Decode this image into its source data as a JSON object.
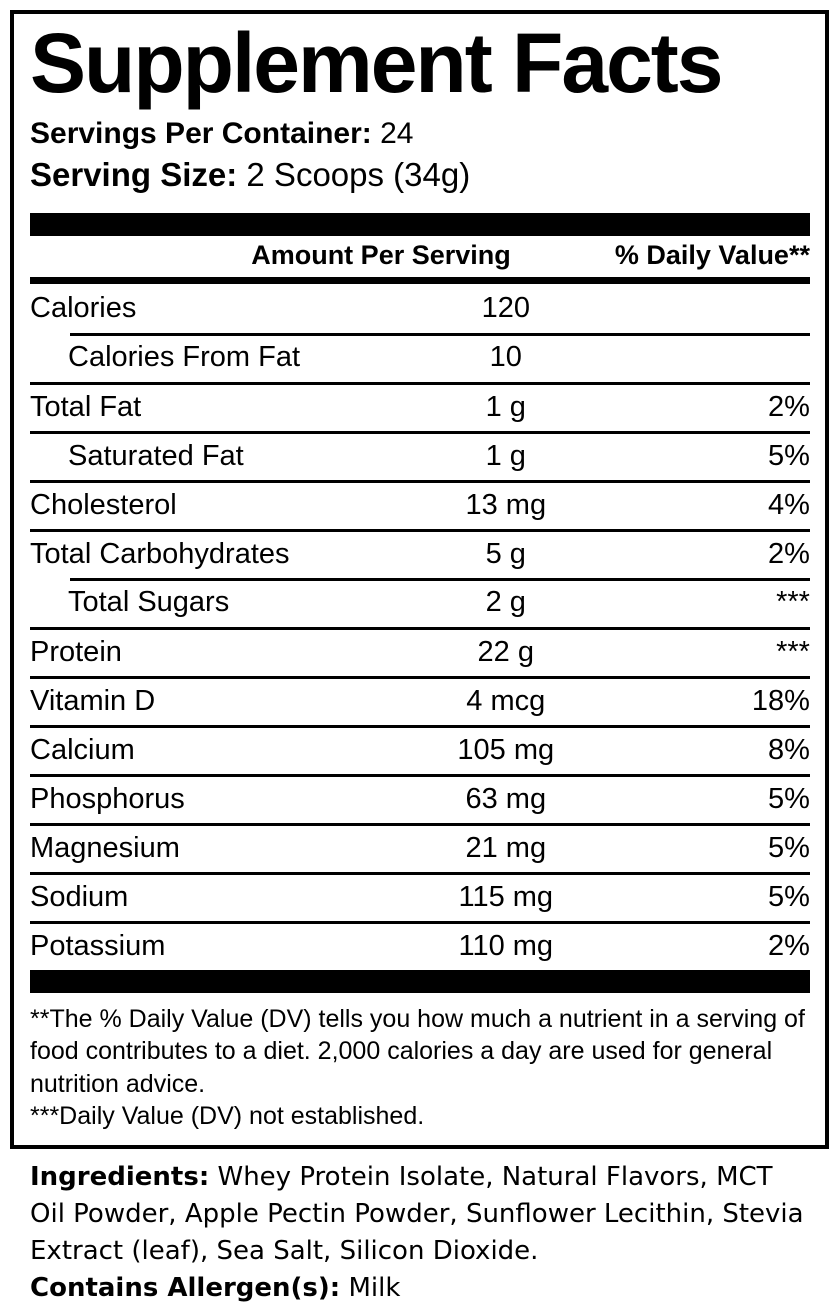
{
  "facts": {
    "title": "Supplement Facts",
    "servings_label": "Servings Per Container:",
    "servings_value": "24",
    "serving_size_label": "Serving Size:",
    "serving_size_value": "2 Scoops (34g)",
    "columns": {
      "amount": "Amount Per Serving",
      "dv": "% Daily Value**"
    },
    "rows": [
      {
        "name": "Calories",
        "amount": "120",
        "dv": ""
      },
      {
        "name": "Calories From Fat",
        "amount": "10",
        "dv": ""
      },
      {
        "name": "Total Fat",
        "amount": "1 g",
        "dv": "2%"
      },
      {
        "name": "Saturated Fat",
        "amount": "1 g",
        "dv": "5%"
      },
      {
        "name": "Cholesterol",
        "amount": "13 mg",
        "dv": "4%"
      },
      {
        "name": "Total Carbohydrates",
        "amount": "5 g",
        "dv": "2%"
      },
      {
        "name": "Total Sugars",
        "amount": "2 g",
        "dv": "***"
      },
      {
        "name": "Protein",
        "amount": "22 g",
        "dv": "***"
      },
      {
        "name": "Vitamin D",
        "amount": "4 mcg",
        "dv": "18%"
      },
      {
        "name": "Calcium",
        "amount": "105 mg",
        "dv": "8%"
      },
      {
        "name": "Phosphorus",
        "amount": "63 mg",
        "dv": "5%"
      },
      {
        "name": "Magnesium",
        "amount": "21 mg",
        "dv": "5%"
      },
      {
        "name": "Sodium",
        "amount": "115 mg",
        "dv": "5%"
      },
      {
        "name": "Potassium",
        "amount": "110 mg",
        "dv": "2%"
      }
    ],
    "footnotes": [
      "**The % Daily Value (DV) tells you how much a nutrient in a serving of food contributes to a diet. 2,000 calories a day are used for general nutrition advice.",
      "***Daily Value (DV) not established."
    ],
    "ingredients_label": "Ingredients:",
    "ingredients_value": "Whey Protein Isolate, Natural Flavors, MCT Oil Powder, Apple Pectin Powder, Sunflower Lecithin, Stevia Extract (leaf), Sea Salt, Silicon Dioxide.",
    "allergen_label": "Contains Allergen(s):",
    "allergen_value": "Milk",
    "colors": {
      "ink": "#000000",
      "background": "#ffffff"
    }
  }
}
